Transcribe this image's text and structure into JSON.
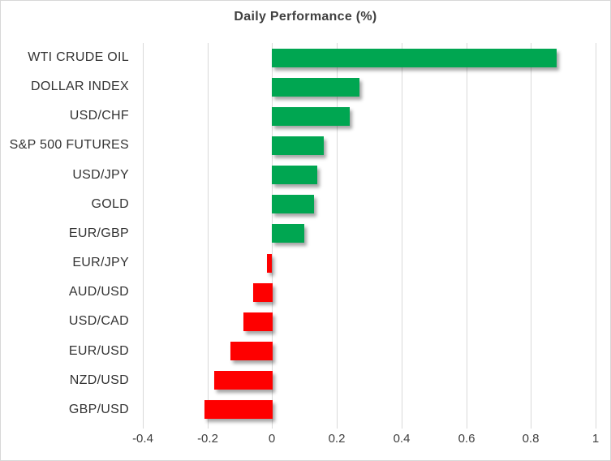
{
  "chart_data": {
    "type": "bar",
    "orientation": "horizontal",
    "title": "Daily Performance (%)",
    "categories": [
      "WTI CRUDE OIL",
      "DOLLAR INDEX",
      "USD/CHF",
      "S&P 500 FUTURES",
      "USD/JPY",
      "GOLD",
      "EUR/GBP",
      "EUR/JPY",
      "AUD/USD",
      "USD/CAD",
      "EUR/USD",
      "NZD/USD",
      "GBP/USD"
    ],
    "values": [
      0.88,
      0.27,
      0.24,
      0.16,
      0.14,
      0.13,
      0.1,
      -0.015,
      -0.06,
      -0.09,
      -0.13,
      -0.18,
      -0.21
    ],
    "xlabel": "",
    "ylabel": "",
    "xlim": [
      -0.4,
      1.0
    ],
    "x_ticks": [
      -0.4,
      -0.2,
      0,
      0.2,
      0.4,
      0.6,
      0.8,
      1
    ],
    "x_tick_labels": [
      "-0.4",
      "-0.2",
      "0",
      "0.2",
      "0.4",
      "0.6",
      "0.8",
      "1"
    ],
    "grid": true,
    "legend": "none",
    "colors": {
      "positive_bar": "#00a651",
      "negative_bar": "#fe0000",
      "gridline": "#d9d9d9",
      "title_text": "#404040",
      "category_text": "#333333",
      "axis_text": "#404040",
      "frame_border": "#d7d7d7"
    }
  }
}
